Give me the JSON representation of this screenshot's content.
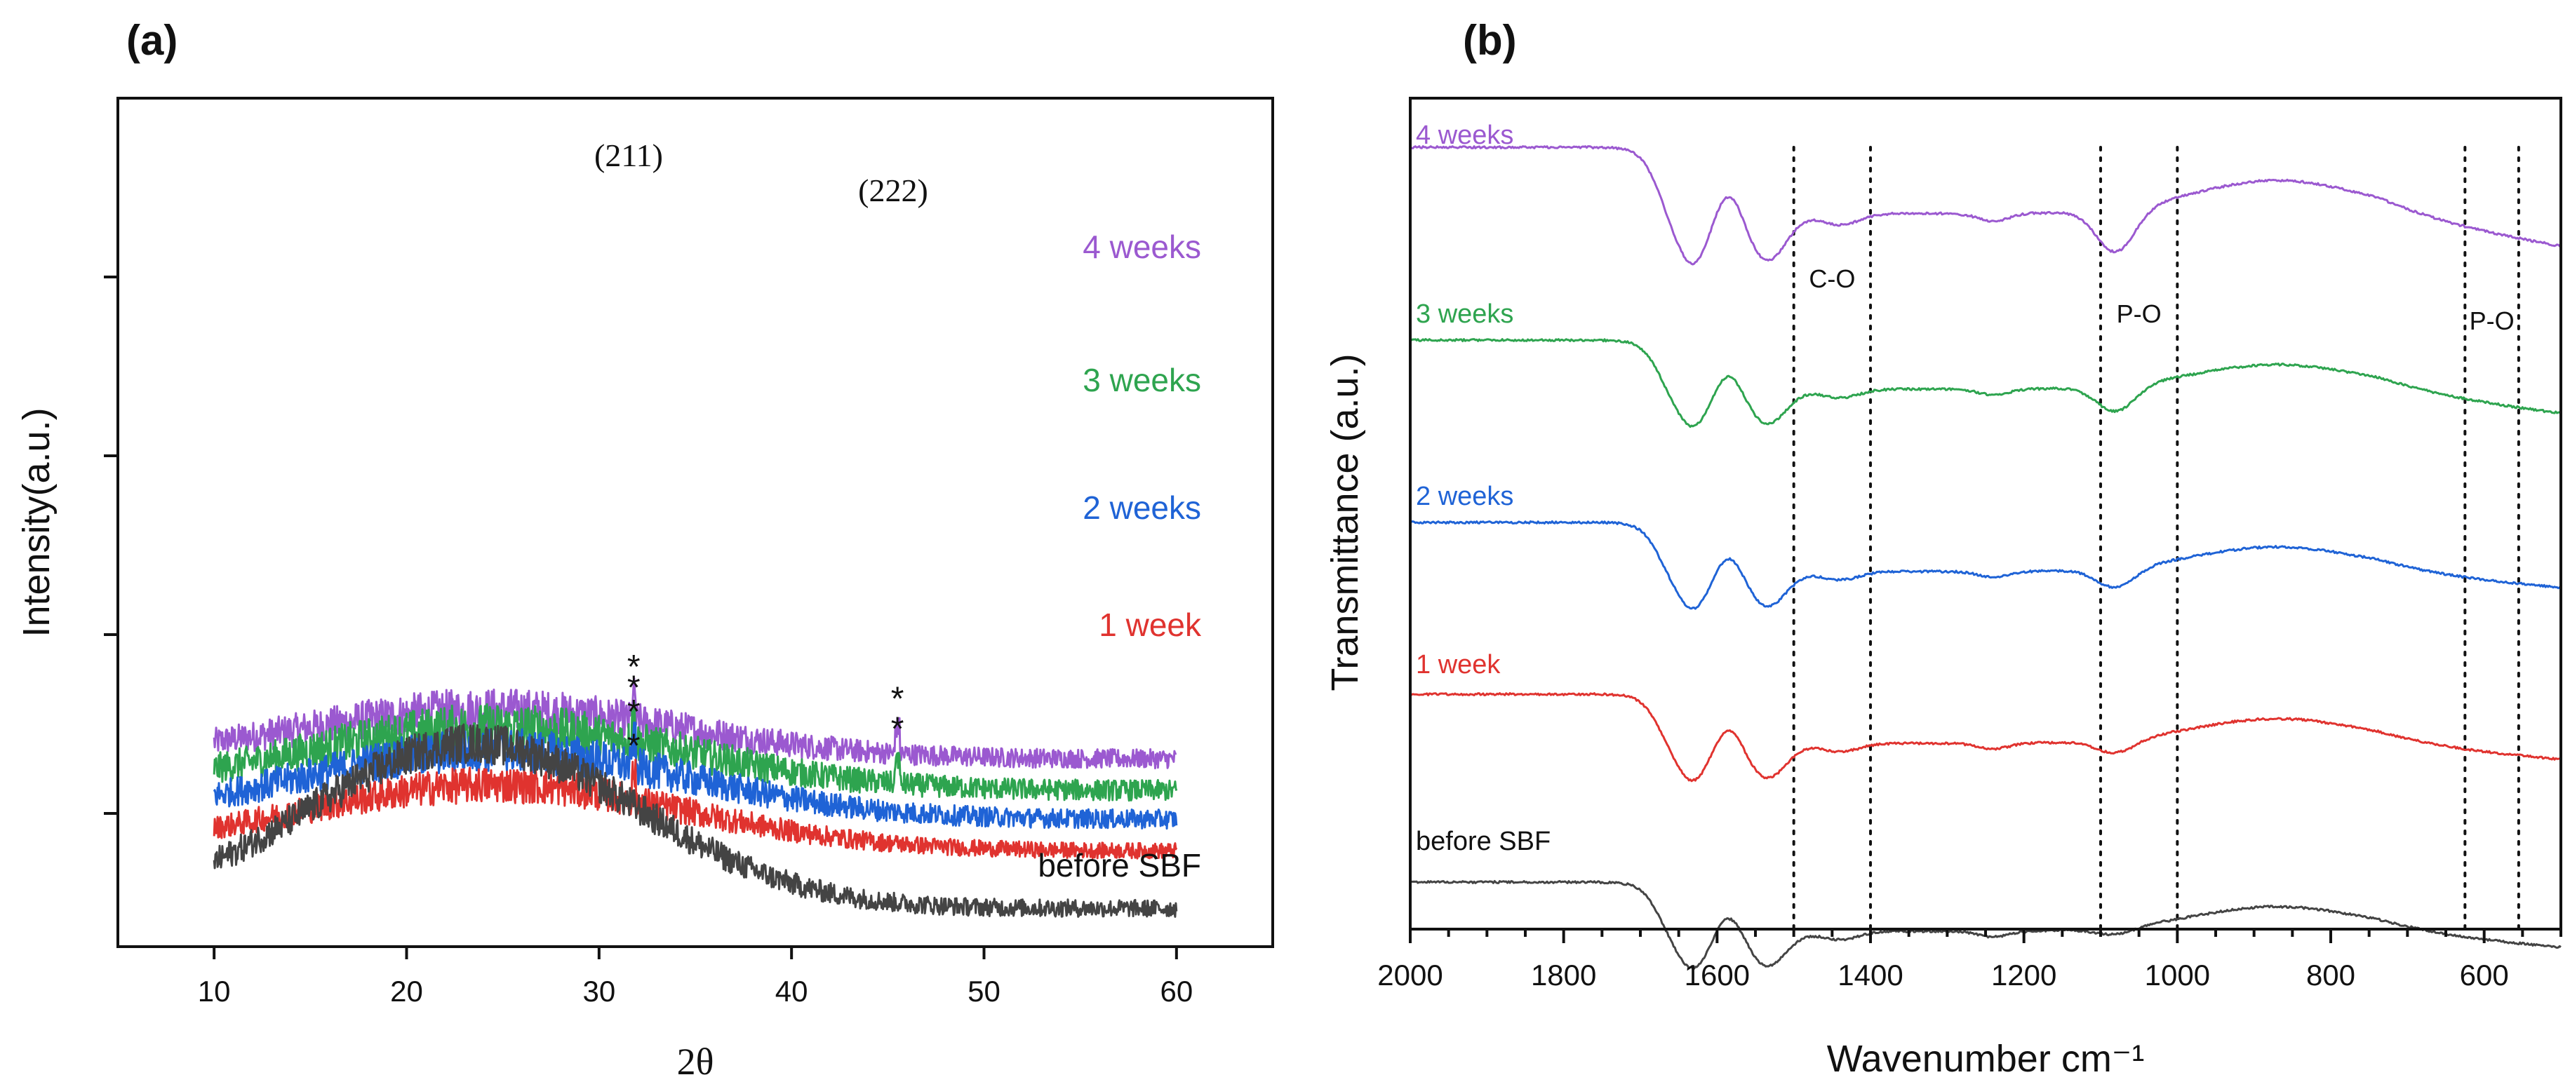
{
  "chart_data": [
    {
      "panel_label": "(a)",
      "type": "line",
      "xlabel": "2θ",
      "ylabel": "Intensity(a.u.)",
      "xlim": [
        5,
        65
      ],
      "xticks": [
        10,
        20,
        30,
        40,
        50,
        60
      ],
      "yticks_labeled": false,
      "legend": "inline-right",
      "series": [
        {
          "name": "4 weeks",
          "color": "#9b59d0",
          "baseline": 0.94,
          "hump_height": 0.34,
          "noise": 0.22,
          "peaks": [
            31.8,
            45.5
          ]
        },
        {
          "name": "3 weeks",
          "color": "#2ea44f",
          "baseline": 0.72,
          "hump_height": 0.44,
          "noise": 0.24,
          "peaks": [
            31.8,
            45.5
          ]
        },
        {
          "name": "2 weeks",
          "color": "#1f63d6",
          "baseline": 0.52,
          "hump_height": 0.48,
          "noise": 0.22,
          "peaks": [
            31.8
          ]
        },
        {
          "name": "1 week",
          "color": "#e0332f",
          "baseline": 0.3,
          "hump_height": 0.46,
          "noise": 0.18,
          "peaks": [
            31.8
          ]
        },
        {
          "name": "before SBF",
          "color": "#444444",
          "baseline": -0.1,
          "hump_height": 1.15,
          "noise": 0.2,
          "peaks": []
        }
      ],
      "annotations": {
        "peak_211": "(211)",
        "peak_222": "(222)",
        "star": "*"
      }
    },
    {
      "panel_label": "(b)",
      "type": "line",
      "xlabel": "Wavenumber cm⁻¹",
      "ylabel": "Transmittance (a.u.)",
      "xlim": [
        2000,
        500
      ],
      "x_reversed": true,
      "xticks": [
        2000,
        1800,
        1600,
        1400,
        1200,
        1000,
        800,
        600
      ],
      "yticks_labeled": false,
      "reference_lines": [
        1500,
        1400,
        1100,
        1000,
        625,
        555
      ],
      "band_labels": [
        {
          "text": "C-O",
          "x": 1450
        },
        {
          "text": "P-O",
          "x": 1050
        },
        {
          "text": "P-O",
          "x": 590
        }
      ],
      "series": [
        {
          "name": "4 weeks",
          "color": "#9b59d0",
          "offset": 4
        },
        {
          "name": "3 weeks",
          "color": "#2ea44f",
          "offset": 3
        },
        {
          "name": "2 weeks",
          "color": "#1f63d6",
          "offset": 2
        },
        {
          "name": "1 week",
          "color": "#e0332f",
          "offset": 1
        },
        {
          "name": "before SBF",
          "color": "#444444",
          "offset": 0
        }
      ]
    }
  ]
}
